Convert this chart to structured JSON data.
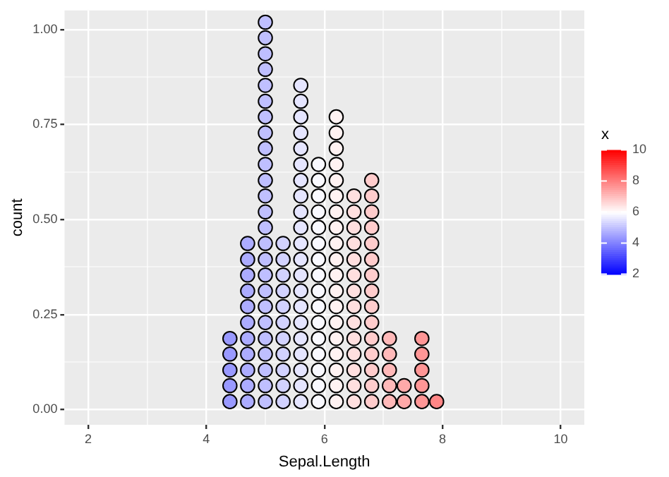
{
  "chart_data": {
    "type": "scatter",
    "xlabel": "Sepal.Length",
    "ylabel": "count",
    "clabel": "x",
    "xlim": [
      1.6,
      10.4
    ],
    "ylim": [
      -0.04,
      1.05
    ],
    "xticks": [
      2,
      {
        "value": 3,
        "label": null
      },
      4,
      {
        "value": 5,
        "label": null
      },
      6,
      {
        "value": 7,
        "label": null
      },
      8,
      {
        "value": 9,
        "label": null
      },
      10
    ],
    "yticks": [
      {
        "value": 0,
        "label": "0.00"
      },
      {
        "value": 0.125,
        "label": null
      },
      {
        "value": 0.25,
        "label": "0.25"
      },
      {
        "value": 0.375,
        "label": null
      },
      {
        "value": 0.5,
        "label": "0.50"
      },
      {
        "value": 0.625,
        "label": null
      },
      {
        "value": 0.75,
        "label": "0.75"
      },
      {
        "value": 0.875,
        "label": null
      },
      {
        "value": 1,
        "label": "1.00"
      }
    ],
    "clim": [
      2,
      10
    ],
    "cticks": [
      2,
      4,
      6,
      8,
      10
    ],
    "grid": true,
    "marker": "circle",
    "series": [
      {
        "color": "#000000",
        "x": [
          4.4,
          4.4,
          4.4,
          4.4,
          4.4,
          4.7,
          4.7,
          4.7,
          4.7,
          4.7,
          4.7,
          4.7,
          4.7,
          4.7,
          4.7,
          4.7,
          5.0,
          5.0,
          5.0,
          5.0,
          5.0,
          5.0,
          5.0,
          5.0,
          5.0,
          5.0,
          5.0,
          5.0,
          5.0,
          5.0,
          5.0,
          5.0,
          5.0,
          5.0,
          5.0,
          5.0,
          5.0,
          5.0,
          5.0,
          5.0,
          5.0,
          5.3,
          5.3,
          5.3,
          5.3,
          5.3,
          5.3,
          5.3,
          5.3,
          5.3,
          5.3,
          5.3,
          5.6,
          5.6,
          5.6,
          5.6,
          5.6,
          5.6,
          5.6,
          5.6,
          5.6,
          5.6,
          5.6,
          5.6,
          5.6,
          5.6,
          5.6,
          5.6,
          5.6,
          5.6,
          5.6,
          5.6,
          5.6,
          5.9,
          5.9,
          5.9,
          5.9,
          5.9,
          5.9,
          5.9,
          5.9,
          5.9,
          5.9,
          5.9,
          5.9,
          5.9,
          5.9,
          5.9,
          5.9,
          6.2,
          6.2,
          6.2,
          6.2,
          6.2,
          6.2,
          6.2,
          6.2,
          6.2,
          6.2,
          6.2,
          6.2,
          6.2,
          6.2,
          6.2,
          6.2,
          6.2,
          6.2,
          6.2,
          6.5,
          6.5,
          6.5,
          6.5,
          6.5,
          6.5,
          6.5,
          6.5,
          6.5,
          6.5,
          6.5,
          6.5,
          6.5,
          6.5,
          6.8,
          6.8,
          6.8,
          6.8,
          6.8,
          6.8,
          6.8,
          6.8,
          6.8,
          6.8,
          6.8,
          6.8,
          6.8,
          6.8,
          6.8,
          7.1,
          7.1,
          7.1,
          7.1,
          7.1,
          7.35,
          7.35,
          7.65,
          7.65,
          7.65,
          7.65,
          7.65,
          7.9
        ],
        "values": [
          0.021,
          0.063,
          0.104,
          0.146,
          0.187,
          0.021,
          0.063,
          0.104,
          0.146,
          0.187,
          0.229,
          0.271,
          0.312,
          0.354,
          0.395,
          0.437,
          0.021,
          0.063,
          0.104,
          0.146,
          0.187,
          0.229,
          0.271,
          0.312,
          0.354,
          0.395,
          0.437,
          0.479,
          0.52,
          0.562,
          0.603,
          0.645,
          0.687,
          0.728,
          0.77,
          0.811,
          0.853,
          0.895,
          0.936,
          0.978,
          1.019,
          0.021,
          0.063,
          0.104,
          0.146,
          0.187,
          0.229,
          0.271,
          0.312,
          0.354,
          0.395,
          0.437,
          0.021,
          0.063,
          0.104,
          0.146,
          0.187,
          0.229,
          0.271,
          0.312,
          0.354,
          0.395,
          0.437,
          0.479,
          0.52,
          0.562,
          0.603,
          0.645,
          0.687,
          0.728,
          0.77,
          0.811,
          0.853,
          0.021,
          0.063,
          0.104,
          0.146,
          0.187,
          0.229,
          0.271,
          0.312,
          0.354,
          0.395,
          0.437,
          0.479,
          0.52,
          0.562,
          0.603,
          0.645,
          0.021,
          0.063,
          0.104,
          0.146,
          0.187,
          0.229,
          0.271,
          0.312,
          0.354,
          0.395,
          0.437,
          0.479,
          0.52,
          0.562,
          0.603,
          0.645,
          0.687,
          0.728,
          0.77,
          0.021,
          0.063,
          0.104,
          0.146,
          0.187,
          0.229,
          0.271,
          0.312,
          0.354,
          0.395,
          0.437,
          0.479,
          0.52,
          0.562,
          0.021,
          0.063,
          0.104,
          0.146,
          0.187,
          0.229,
          0.271,
          0.312,
          0.354,
          0.395,
          0.437,
          0.479,
          0.52,
          0.562,
          0.603,
          0.021,
          0.063,
          0.104,
          0.146,
          0.187,
          0.021,
          0.063,
          0.021,
          0.063,
          0.104,
          0.146,
          0.187,
          0.021
        ],
        "cvalues": [
          4.4,
          4.4,
          4.4,
          4.4,
          4.4,
          4.7,
          4.7,
          4.7,
          4.7,
          4.7,
          4.7,
          4.7,
          4.7,
          4.7,
          4.7,
          4.7,
          5.0,
          5.0,
          5.0,
          5.0,
          5.0,
          5.0,
          5.0,
          5.0,
          5.0,
          5.0,
          5.0,
          5.0,
          5.0,
          5.0,
          5.0,
          5.0,
          5.0,
          5.0,
          5.0,
          5.0,
          5.0,
          5.0,
          5.0,
          5.0,
          5.0,
          5.3,
          5.3,
          5.3,
          5.3,
          5.3,
          5.3,
          5.3,
          5.3,
          5.3,
          5.3,
          5.3,
          5.6,
          5.6,
          5.6,
          5.6,
          5.6,
          5.6,
          5.6,
          5.6,
          5.6,
          5.6,
          5.6,
          5.6,
          5.6,
          5.6,
          5.6,
          5.6,
          5.6,
          5.6,
          5.6,
          5.6,
          5.6,
          5.9,
          5.9,
          5.9,
          5.9,
          5.9,
          5.9,
          5.9,
          5.9,
          5.9,
          5.9,
          5.9,
          5.9,
          5.9,
          5.9,
          5.9,
          5.9,
          6.2,
          6.2,
          6.2,
          6.2,
          6.2,
          6.2,
          6.2,
          6.2,
          6.2,
          6.2,
          6.2,
          6.2,
          6.2,
          6.2,
          6.2,
          6.2,
          6.2,
          6.2,
          6.2,
          6.5,
          6.5,
          6.5,
          6.5,
          6.5,
          6.5,
          6.5,
          6.5,
          6.5,
          6.5,
          6.5,
          6.5,
          6.5,
          6.5,
          6.8,
          6.8,
          6.8,
          6.8,
          6.8,
          6.8,
          6.8,
          6.8,
          6.8,
          6.8,
          6.8,
          6.8,
          6.8,
          6.8,
          6.8,
          7.1,
          7.1,
          7.1,
          7.1,
          7.1,
          7.35,
          7.35,
          7.65,
          7.65,
          7.65,
          7.65,
          7.65,
          7.9
        ]
      }
    ]
  }
}
